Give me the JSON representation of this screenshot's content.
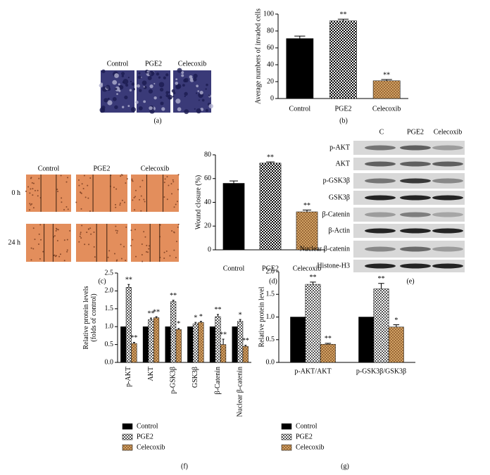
{
  "chart_data": [
    {
      "type": "bar",
      "label": "(b)",
      "ylabel": [
        "Average numbers of invaded cells"
      ],
      "categories": [
        "Control",
        "PGE2",
        "Celecoxib"
      ],
      "values": [
        71,
        92,
        21
      ],
      "errors": [
        3,
        2,
        1.5
      ],
      "colors": [
        "#000000",
        "#000000",
        "#8b5a2b"
      ],
      "fills": [
        "solid",
        "checker",
        "hatch"
      ],
      "significance": [
        null,
        "**",
        "**"
      ],
      "ylim": [
        0,
        100
      ],
      "yticks": [
        0,
        20,
        40,
        60,
        80,
        100
      ]
    },
    {
      "type": "bar",
      "label": "(d)",
      "ylabel": [
        "Wound closure (%)"
      ],
      "categories": [
        "Control",
        "PGE2",
        "Celecoxib"
      ],
      "values": [
        56,
        73,
        32
      ],
      "errors": [
        2,
        1,
        1.5
      ],
      "colors": [
        "#000000",
        "#000000",
        "#8b5a2b"
      ],
      "fills": [
        "solid",
        "checker",
        "hatch"
      ],
      "significance": [
        null,
        "**",
        "**"
      ],
      "ylim": [
        0,
        80
      ],
      "yticks": [
        0,
        20,
        40,
        60,
        80
      ]
    },
    {
      "type": "grouped-bar",
      "label": "(f)",
      "ylabel": [
        "Relative protein levels",
        "(folds of control)"
      ],
      "categories": [
        "p-AKT",
        "AKT",
        "p-GSK3β",
        "GSK3β",
        "β-Catenin",
        "Nuclear β-catenin"
      ],
      "series": [
        {
          "name": "Control",
          "color": "#000000",
          "fill": "solid",
          "values": [
            1,
            1,
            1,
            1,
            1,
            1
          ],
          "errors": [
            0,
            0,
            0,
            0,
            0,
            0
          ],
          "significance": [
            null,
            null,
            null,
            null,
            null,
            null
          ]
        },
        {
          "name": "PGE2",
          "color": "#555555",
          "fill": "checker",
          "values": [
            2.1,
            1.2,
            1.7,
            1.08,
            1.28,
            1.15
          ],
          "errors": [
            0.08,
            0.04,
            0.04,
            0.04,
            0.06,
            0.05
          ],
          "significance": [
            "**",
            "**",
            "**",
            "*",
            "**",
            "*"
          ]
        },
        {
          "name": "Celecoxib",
          "color": "#8b5a2b",
          "fill": "hatch",
          "values": [
            0.53,
            1.25,
            0.92,
            1.12,
            0.5,
            0.45
          ],
          "errors": [
            0.03,
            0.03,
            0.03,
            0.03,
            0.15,
            0.03
          ],
          "significance": [
            "**",
            "**",
            "*",
            "*",
            "**",
            "**"
          ]
        }
      ],
      "ylim": [
        0,
        2.5
      ],
      "yticks": [
        {
          "value": 0,
          "label": "0.0"
        },
        0.5,
        {
          "value": 1,
          "label": "1.0"
        },
        1.5,
        {
          "value": 2,
          "label": "2.0"
        },
        2.5
      ]
    },
    {
      "type": "grouped-bar",
      "label": "(g)",
      "ylabel": [
        "Relative protein level"
      ],
      "categories": [
        "p-AKT/AKT",
        "p-GSK3β/GSK3β"
      ],
      "series": [
        {
          "name": "Control",
          "color": "#000000",
          "fill": "solid",
          "values": [
            1,
            1
          ],
          "errors": [
            0,
            0
          ],
          "significance": [
            null,
            null
          ]
        },
        {
          "name": "PGE2",
          "color": "#555555",
          "fill": "checker",
          "values": [
            1.72,
            1.62
          ],
          "errors": [
            0.05,
            0.12
          ],
          "significance": [
            "**",
            "**"
          ]
        },
        {
          "name": "Celecoxib",
          "color": "#8b5a2b",
          "fill": "hatch",
          "values": [
            0.4,
            0.78
          ],
          "errors": [
            0.02,
            0.05
          ],
          "significance": [
            "**",
            "*"
          ]
        }
      ],
      "ylim": [
        0,
        2.0
      ],
      "yticks": [
        {
          "value": 0,
          "label": "0.0"
        },
        0.5,
        {
          "value": 1,
          "label": "1.0"
        },
        1.5,
        {
          "value": 2,
          "label": "2.0"
        }
      ]
    }
  ],
  "panels": {
    "a": {
      "label": "(a)",
      "columns": [
        "Control",
        "PGE2",
        "Celecoxib"
      ]
    },
    "c": {
      "label": "(c)",
      "columns": [
        "Control",
        "PGE2",
        "Celecoxib"
      ],
      "rows": [
        "0 h",
        "24 h"
      ]
    },
    "e": {
      "label": "(e)",
      "columns": [
        "C",
        "PGE2",
        "Celecoxib"
      ],
      "rows": [
        "p-AKT",
        "AKT",
        "p-GSK3β",
        "GSK3β",
        "β-Catenin",
        "β-Actin",
        "Nuclear β-catenin",
        "Histone-H3"
      ]
    }
  }
}
